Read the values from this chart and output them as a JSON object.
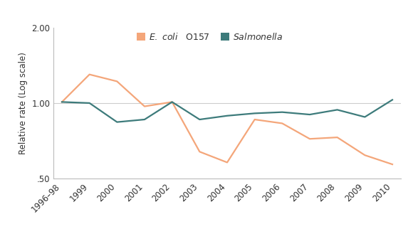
{
  "x_labels": [
    "1996–98",
    "1999",
    "2000",
    "2001",
    "2002",
    "2003",
    "2004",
    "2005",
    "2006",
    "2007",
    "2008",
    "2009",
    "2010"
  ],
  "x_positions": [
    0,
    1,
    2,
    3,
    4,
    5,
    6,
    7,
    8,
    9,
    10,
    11,
    12
  ],
  "ecoli_values": [
    1.01,
    1.3,
    1.22,
    0.97,
    1.01,
    0.64,
    0.58,
    0.86,
    0.83,
    0.72,
    0.73,
    0.62,
    0.57
  ],
  "salmonella_values": [
    1.01,
    1.0,
    0.84,
    0.86,
    1.01,
    0.86,
    0.89,
    0.91,
    0.92,
    0.9,
    0.94,
    0.88,
    1.03
  ],
  "ecoli_color": "#F4A67A",
  "salmonella_color": "#3D7B7B",
  "ylabel": "Relative rate (Log scale)",
  "ylim_log": [
    0.5,
    2.0
  ],
  "yticks": [
    0.5,
    1.0,
    2.0
  ],
  "ytick_labels": [
    ".50",
    "1.00",
    "2.00"
  ],
  "line_width": 1.6,
  "background_color": "#FFFFFF",
  "reference_line_y": 1.0,
  "reference_line_color": "#CCCCCC"
}
